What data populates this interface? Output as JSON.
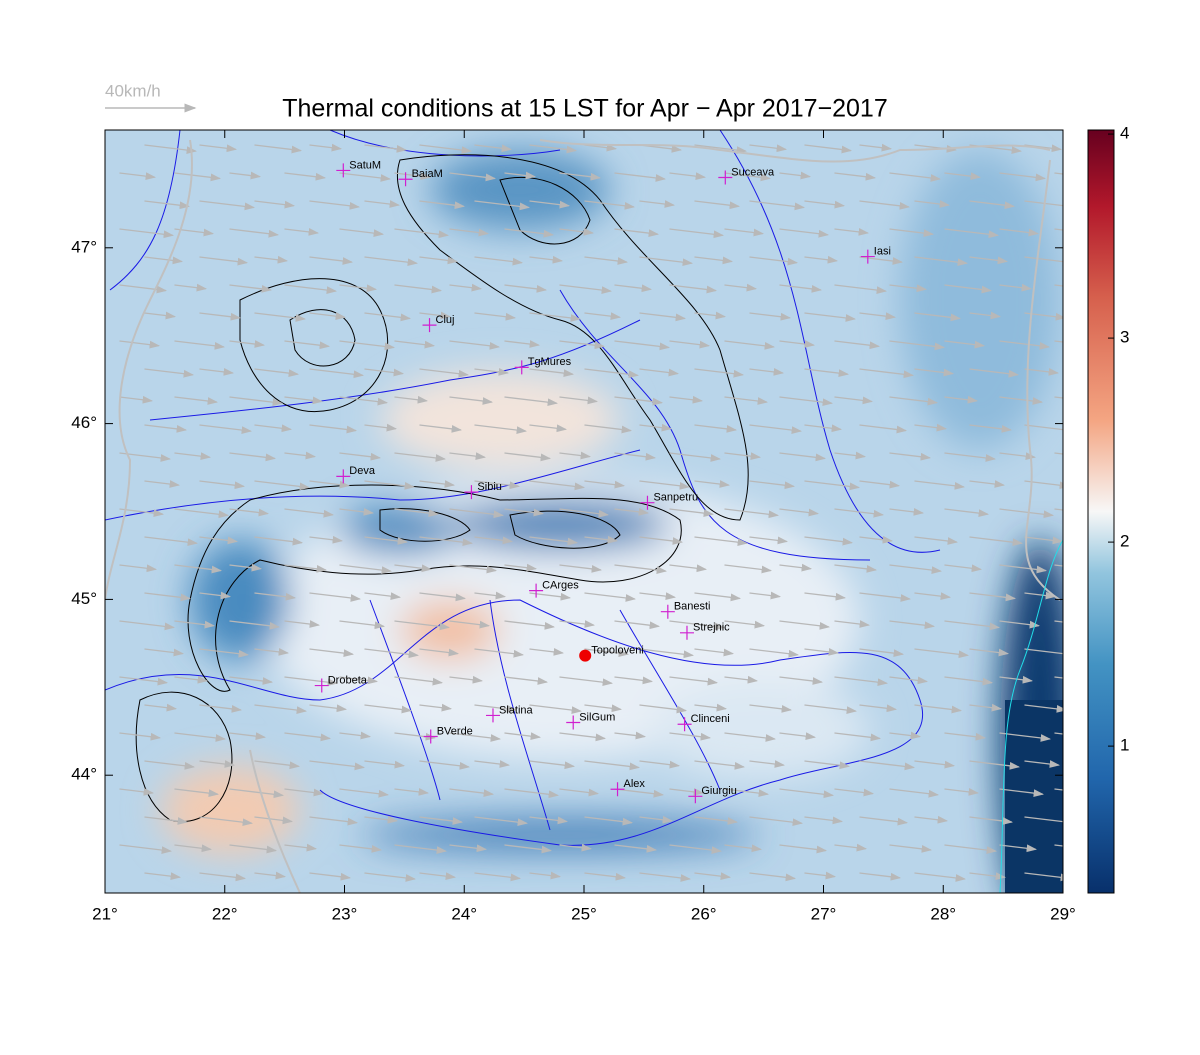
{
  "title": "Thermal conditions at 15 LST for Apr − Apr  2017−2017",
  "wind_legend": "40km/h",
  "map": {
    "xlim": [
      21,
      29
    ],
    "ylim": [
      43.33,
      47.67
    ],
    "xticks": [
      {
        "value": 21,
        "label": "21°"
      },
      {
        "value": 22,
        "label": "22°"
      },
      {
        "value": 23,
        "label": "23°"
      },
      {
        "value": 24,
        "label": "24°"
      },
      {
        "value": 25,
        "label": "25°"
      },
      {
        "value": 26,
        "label": "26°"
      },
      {
        "value": 27,
        "label": "27°"
      },
      {
        "value": 28,
        "label": "28°"
      },
      {
        "value": 29,
        "label": "29°"
      }
    ],
    "yticks": [
      {
        "value": 44,
        "label": "44°"
      },
      {
        "value": 45,
        "label": "45°"
      },
      {
        "value": 46,
        "label": "46°"
      },
      {
        "value": 47,
        "label": "47°"
      }
    ],
    "cities": [
      {
        "name": "SatuM",
        "lon": 22.99,
        "lat": 47.44,
        "marker": "plus",
        "color": "#d020d0"
      },
      {
        "name": "BaiaM",
        "lon": 23.51,
        "lat": 47.39,
        "marker": "plus",
        "color": "#d020d0"
      },
      {
        "name": "Suceava",
        "lon": 26.18,
        "lat": 47.4,
        "marker": "plus",
        "color": "#d020d0"
      },
      {
        "name": "Iasi",
        "lon": 27.37,
        "lat": 46.95,
        "marker": "plus",
        "color": "#d020d0"
      },
      {
        "name": "Cluj",
        "lon": 23.71,
        "lat": 46.56,
        "marker": "plus",
        "color": "#d020d0"
      },
      {
        "name": "TgMures",
        "lon": 24.48,
        "lat": 46.32,
        "marker": "plus",
        "color": "#d020d0"
      },
      {
        "name": "Deva",
        "lon": 22.99,
        "lat": 45.7,
        "marker": "plus",
        "color": "#d020d0"
      },
      {
        "name": "Sibiu",
        "lon": 24.06,
        "lat": 45.61,
        "marker": "plus",
        "color": "#d020d0"
      },
      {
        "name": "Sanpetru",
        "lon": 25.53,
        "lat": 45.55,
        "marker": "plus",
        "color": "#d020d0"
      },
      {
        "name": "CArges",
        "lon": 24.6,
        "lat": 45.05,
        "marker": "plus",
        "color": "#d020d0"
      },
      {
        "name": "Banesti",
        "lon": 25.7,
        "lat": 44.93,
        "marker": "plus",
        "color": "#d020d0"
      },
      {
        "name": "Strejnic",
        "lon": 25.86,
        "lat": 44.81,
        "marker": "plus",
        "color": "#d020d0"
      },
      {
        "name": "Topoloveni",
        "lon": 25.01,
        "lat": 44.68,
        "marker": "dot",
        "color": "#ee0000"
      },
      {
        "name": "Drobeta",
        "lon": 22.81,
        "lat": 44.51,
        "marker": "plus",
        "color": "#d020d0"
      },
      {
        "name": "Slatina",
        "lon": 24.24,
        "lat": 44.34,
        "marker": "plus",
        "color": "#d020d0"
      },
      {
        "name": "SilGum",
        "lon": 24.91,
        "lat": 44.3,
        "marker": "plus",
        "color": "#d020d0"
      },
      {
        "name": "Clinceni",
        "lon": 25.84,
        "lat": 44.29,
        "marker": "plus",
        "color": "#d020d0"
      },
      {
        "name": "BVerde",
        "lon": 23.72,
        "lat": 44.22,
        "marker": "plus",
        "color": "#d020d0"
      },
      {
        "name": "Alex",
        "lon": 25.28,
        "lat": 43.92,
        "marker": "plus",
        "color": "#d020d0"
      },
      {
        "name": "Giurgiu",
        "lon": 25.93,
        "lat": 43.88,
        "marker": "plus",
        "color": "#d020d0"
      }
    ]
  },
  "colorbar": {
    "lim": [
      0.28,
      4.02
    ],
    "ticks": [
      1,
      2,
      3,
      4
    ]
  }
}
